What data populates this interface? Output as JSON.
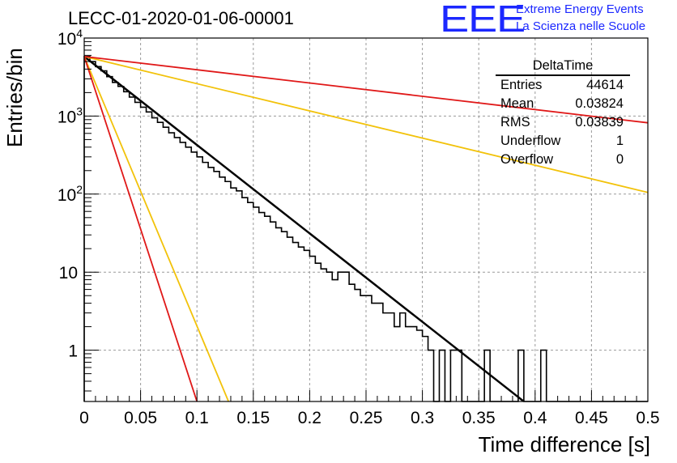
{
  "header": {
    "title": "LECC-01-2020-01-06-00001",
    "logo": {
      "mark": "EEE",
      "line1": "Extreme Energy Events",
      "line2": "La Scienza nelle Scuole",
      "color": "#1c28ff"
    }
  },
  "stats": {
    "title": "DeltaTime",
    "rows": [
      {
        "label": "Entries",
        "value": "44614"
      },
      {
        "label": "Mean",
        "value": "0.03824"
      },
      {
        "label": "RMS",
        "value": "0.03839"
      },
      {
        "label": "Underflow",
        "value": "1"
      },
      {
        "label": "Overflow",
        "value": "0"
      }
    ]
  },
  "chart_data": {
    "type": "line",
    "title": "LECC-01-2020-01-06-00001",
    "xlabel": "Time difference [s]",
    "ylabel": "Entries/bin",
    "xlim": [
      0,
      0.5
    ],
    "ylim": [
      0.22,
      10000
    ],
    "y_scale": "log",
    "grid": true,
    "x_ticks": [
      "0",
      "0.05",
      "0.1",
      "0.15",
      "0.2",
      "0.25",
      "0.3",
      "0.35",
      "0.4",
      "0.45",
      "0.5"
    ],
    "y_ticks": [
      {
        "value": 1,
        "label": "1"
      },
      {
        "value": 10,
        "label": "10"
      },
      {
        "value": 100,
        "label": "10",
        "exp": "2"
      },
      {
        "value": 1000,
        "label": "10",
        "exp": "3"
      },
      {
        "value": 10000,
        "label": "10",
        "exp": "4"
      }
    ],
    "histogram": {
      "bin_width": 0.005,
      "color": "#000000",
      "counts": [
        5800,
        5000,
        4300,
        3800,
        3200,
        2700,
        2400,
        2050,
        1750,
        1500,
        1300,
        1130,
        950,
        830,
        720,
        610,
        530,
        460,
        400,
        345,
        300,
        255,
        220,
        195,
        165,
        145,
        120,
        110,
        90,
        78,
        68,
        58,
        52,
        44,
        37,
        33,
        28,
        24,
        21,
        19,
        16,
        13,
        11,
        10,
        8,
        10,
        10,
        7,
        6,
        5,
        5,
        4,
        4,
        3,
        3,
        2,
        3,
        2,
        2,
        1.8,
        1.5,
        1,
        0,
        1,
        0,
        1,
        1,
        0,
        0,
        0,
        0,
        1,
        0,
        0,
        0,
        0,
        0,
        1,
        0,
        0,
        0,
        1,
        0,
        0,
        0,
        0,
        0,
        0,
        0,
        0,
        0,
        0,
        0,
        0,
        0,
        0,
        0,
        0,
        0,
        0
      ]
    },
    "series": [
      {
        "color": "#000000",
        "width": 2.5,
        "points": [
          [
            0,
            5800
          ],
          [
            0.39,
            0.22
          ]
        ]
      },
      {
        "color": "#f2c20a",
        "width": 1.8,
        "points": [
          [
            0,
            5800
          ],
          [
            0.5,
            105
          ]
        ]
      },
      {
        "color": "#e01818",
        "width": 1.8,
        "points": [
          [
            0,
            5800
          ],
          [
            0.5,
            820
          ]
        ]
      },
      {
        "color": "#f2c20a",
        "width": 1.8,
        "points": [
          [
            0,
            5800
          ],
          [
            0.128,
            0.22
          ]
        ]
      },
      {
        "color": "#e01818",
        "width": 1.8,
        "points": [
          [
            0,
            5800
          ],
          [
            0.1,
            0.22
          ]
        ]
      }
    ]
  }
}
